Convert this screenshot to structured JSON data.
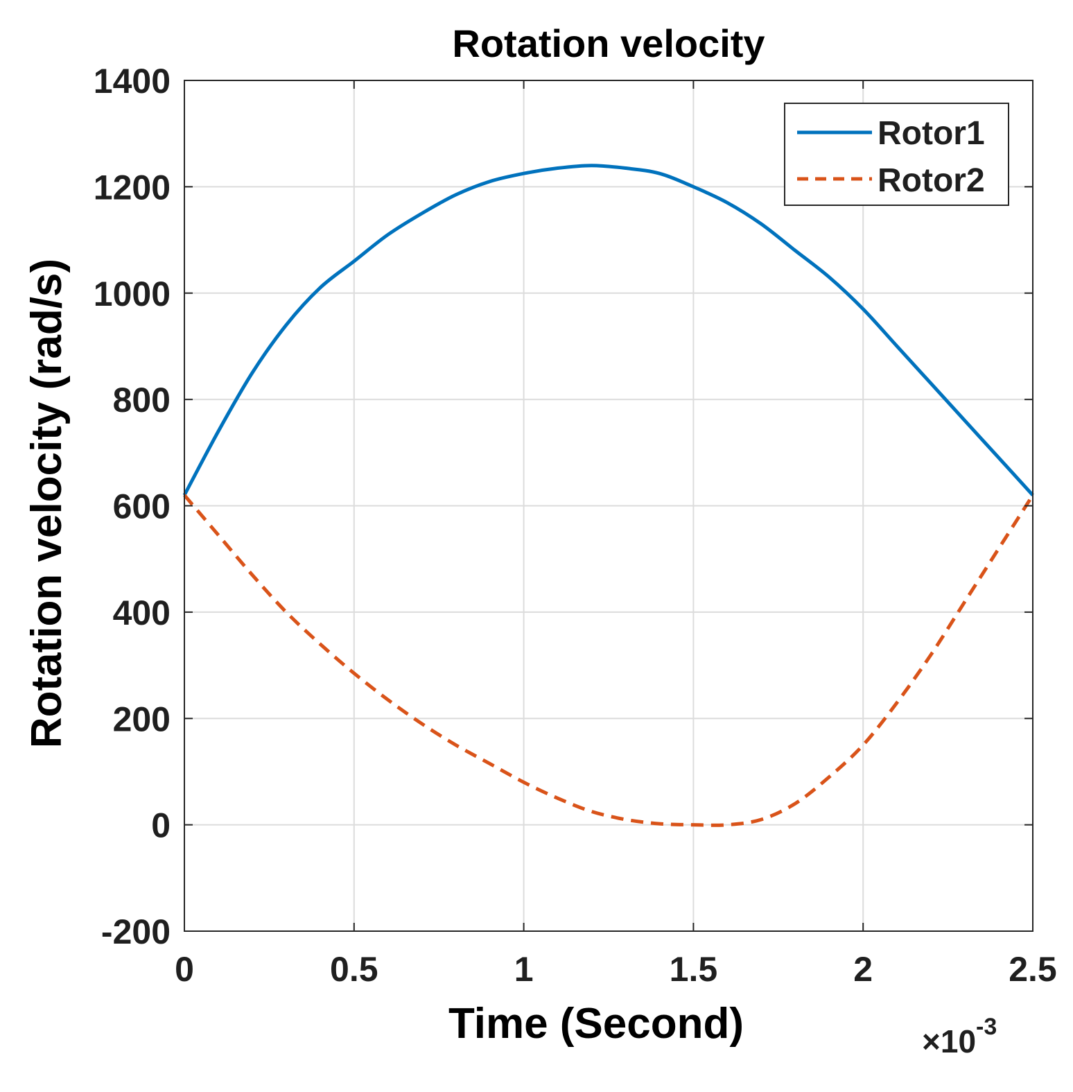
{
  "chart_data": {
    "type": "line",
    "title": "Rotation velocity",
    "xlabel": "Time (Second)",
    "ylabel": "Rotation velocity (rad/s)",
    "x_exponent_label": "×10",
    "x_exponent_power": "-3",
    "xlim": [
      0,
      2.5
    ],
    "ylim": [
      -200,
      1400
    ],
    "xticks": [
      0,
      0.5,
      1,
      1.5,
      2,
      2.5
    ],
    "xtick_labels": [
      "0",
      "0.5",
      "1",
      "1.5",
      "2",
      "2.5"
    ],
    "yticks": [
      -200,
      0,
      200,
      400,
      600,
      800,
      1000,
      1200,
      1400
    ],
    "ytick_labels": [
      "-200",
      "0",
      "200",
      "400",
      "600",
      "800",
      "1000",
      "1200",
      "1400"
    ],
    "grid": true,
    "legend_position": "top-right",
    "x": [
      0,
      0.1,
      0.2,
      0.3,
      0.4,
      0.5,
      0.6,
      0.7,
      0.8,
      0.9,
      1.0,
      1.1,
      1.2,
      1.3,
      1.4,
      1.5,
      1.6,
      1.7,
      1.8,
      1.9,
      2.0,
      2.1,
      2.2,
      2.3,
      2.4,
      2.5
    ],
    "series": [
      {
        "name": "Rotor1",
        "color": "#0072BD",
        "style": "solid",
        "values": [
          620,
          740,
          850,
          940,
          1010,
          1060,
          1110,
          1150,
          1185,
          1210,
          1225,
          1235,
          1240,
          1235,
          1225,
          1200,
          1170,
          1130,
          1080,
          1030,
          970,
          900,
          830,
          760,
          690,
          620
        ]
      },
      {
        "name": "Rotor2",
        "color": "#D95319",
        "style": "dashed",
        "values": [
          620,
          545,
          470,
          400,
          340,
          285,
          235,
          190,
          150,
          115,
          80,
          50,
          25,
          10,
          2,
          0,
          0,
          10,
          40,
          90,
          150,
          230,
          320,
          420,
          520,
          620
        ]
      }
    ]
  }
}
